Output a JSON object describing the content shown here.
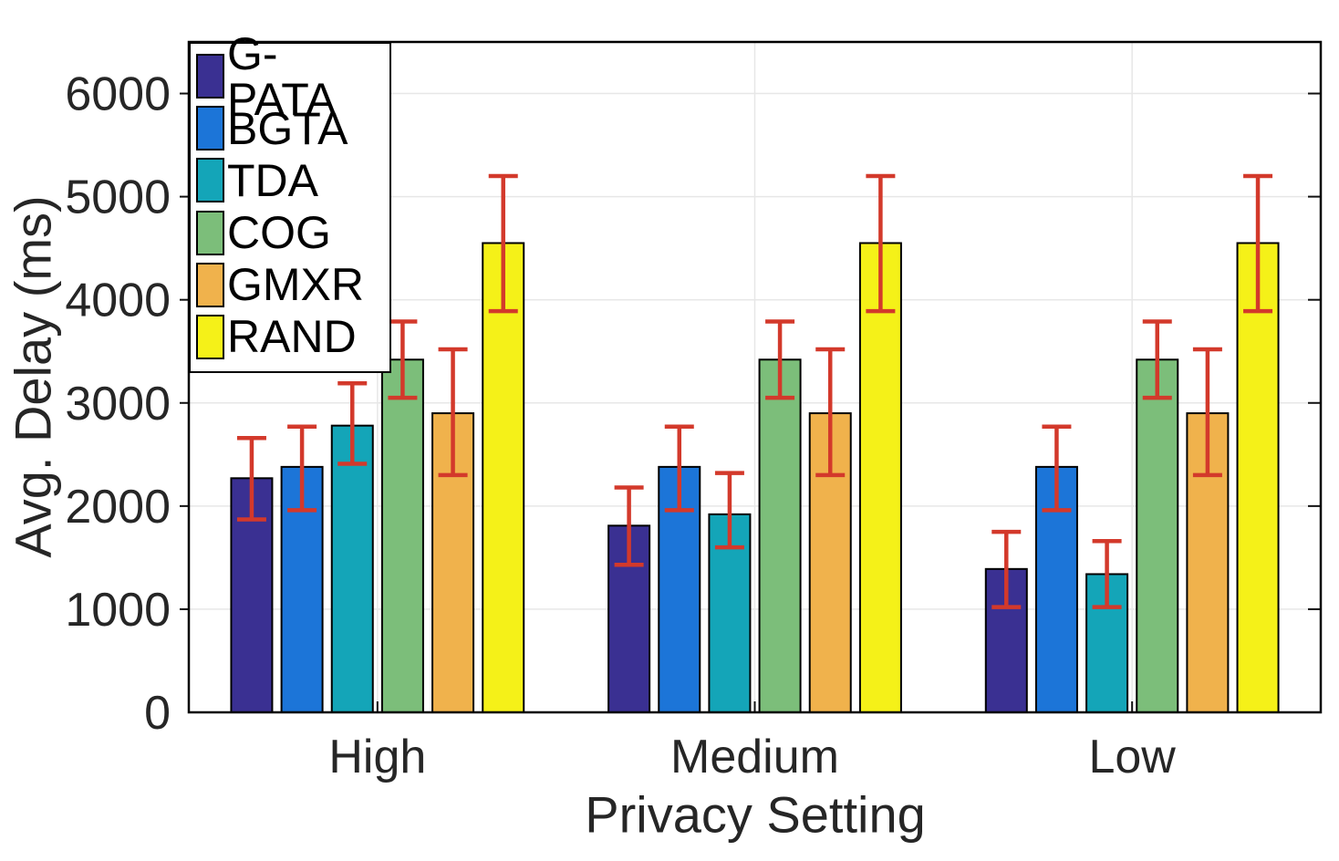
{
  "chart_data": {
    "type": "bar",
    "title": "",
    "xlabel": "Privacy Setting",
    "ylabel": "Avg. Delay (ms)",
    "categories": [
      "High",
      "Medium",
      "Low"
    ],
    "yticks": [
      0,
      1000,
      2000,
      3000,
      4000,
      5000,
      6000
    ],
    "ylim": [
      0,
      6500
    ],
    "grid": true,
    "legend_position": "northwest",
    "colors": {
      "grid": "#E7E7E7",
      "axis": "#000000",
      "tick_text": "#262626",
      "error_bar": "#D3392B",
      "bar_edge": "#000000"
    },
    "series": [
      {
        "name": "G-PATA",
        "color": "#3A3092",
        "values": [
          2270,
          1810,
          1390
        ],
        "err_low": [
          1870,
          1430,
          1020
        ],
        "err_high": [
          2660,
          2180,
          1750
        ]
      },
      {
        "name": "BGTA",
        "color": "#1C75D8",
        "values": [
          2380,
          2380,
          2380
        ],
        "err_low": [
          1960,
          1960,
          1960
        ],
        "err_high": [
          2770,
          2770,
          2770
        ]
      },
      {
        "name": "TDA",
        "color": "#14A5B8",
        "values": [
          2780,
          1920,
          1340
        ],
        "err_low": [
          2410,
          1600,
          1020
        ],
        "err_high": [
          3190,
          2320,
          1660
        ]
      },
      {
        "name": "COG",
        "color": "#7CBE7A",
        "values": [
          3420,
          3420,
          3420
        ],
        "err_low": [
          3050,
          3050,
          3050
        ],
        "err_high": [
          3790,
          3790,
          3790
        ]
      },
      {
        "name": "GMXR",
        "color": "#F0B24C",
        "values": [
          2900,
          2900,
          2900
        ],
        "err_low": [
          2300,
          2300,
          2300
        ],
        "err_high": [
          3520,
          3520,
          3520
        ]
      },
      {
        "name": "RAND",
        "color": "#F5F118",
        "values": [
          4550,
          4550,
          4550
        ],
        "err_low": [
          3890,
          3890,
          3890
        ],
        "err_high": [
          5200,
          5200,
          5200
        ]
      }
    ]
  }
}
